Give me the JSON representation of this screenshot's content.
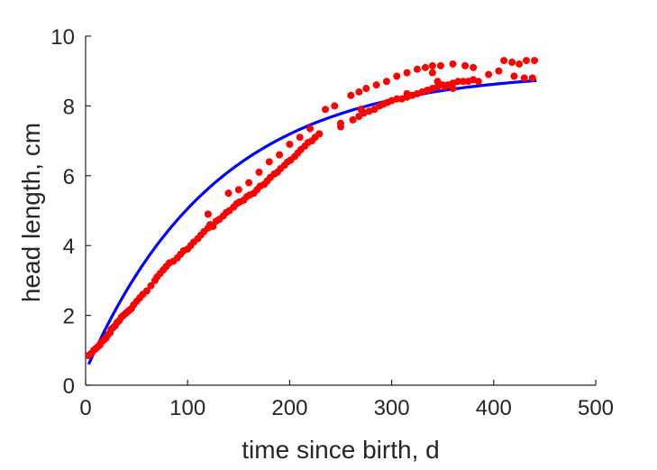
{
  "chart_data": {
    "type": "scatter",
    "xlabel": "time since birth, d",
    "ylabel": "head length, cm",
    "xlim": [
      0,
      500
    ],
    "ylim": [
      0,
      10
    ],
    "xticks": [
      0,
      100,
      200,
      300,
      400,
      500
    ],
    "yticks": [
      0,
      2,
      4,
      6,
      8,
      10
    ],
    "grid": false,
    "series": [
      {
        "kind": "points",
        "color": "#ff0000",
        "points": [
          [
            3,
            0.85
          ],
          [
            5,
            0.9
          ],
          [
            8,
            1.0
          ],
          [
            10,
            1.05
          ],
          [
            12,
            1.1
          ],
          [
            14,
            1.15
          ],
          [
            16,
            1.25
          ],
          [
            18,
            1.3
          ],
          [
            20,
            1.35
          ],
          [
            22,
            1.45
          ],
          [
            24,
            1.5
          ],
          [
            25,
            1.6
          ],
          [
            27,
            1.65
          ],
          [
            29,
            1.7
          ],
          [
            31,
            1.8
          ],
          [
            33,
            1.85
          ],
          [
            35,
            1.95
          ],
          [
            37,
            2.0
          ],
          [
            39,
            2.05
          ],
          [
            41,
            2.1
          ],
          [
            43,
            2.15
          ],
          [
            45,
            2.2
          ],
          [
            47,
            2.3
          ],
          [
            50,
            2.4
          ],
          [
            53,
            2.5
          ],
          [
            56,
            2.6
          ],
          [
            60,
            2.7
          ],
          [
            64,
            2.85
          ],
          [
            68,
            3.0
          ],
          [
            70,
            3.1
          ],
          [
            73,
            3.2
          ],
          [
            76,
            3.3
          ],
          [
            79,
            3.4
          ],
          [
            82,
            3.5
          ],
          [
            86,
            3.55
          ],
          [
            90,
            3.65
          ],
          [
            93,
            3.75
          ],
          [
            96,
            3.85
          ],
          [
            100,
            3.9
          ],
          [
            103,
            4.0
          ],
          [
            106,
            4.1
          ],
          [
            110,
            4.2
          ],
          [
            113,
            4.3
          ],
          [
            116,
            4.4
          ],
          [
            120,
            4.5
          ],
          [
            122,
            4.6
          ],
          [
            125,
            4.55
          ],
          [
            128,
            4.7
          ],
          [
            131,
            4.75
          ],
          [
            135,
            4.85
          ],
          [
            138,
            4.95
          ],
          [
            141,
            5.0
          ],
          [
            145,
            5.1
          ],
          [
            148,
            5.2
          ],
          [
            151,
            5.25
          ],
          [
            155,
            5.3
          ],
          [
            158,
            5.4
          ],
          [
            161,
            5.45
          ],
          [
            165,
            5.5
          ],
          [
            168,
            5.6
          ],
          [
            171,
            5.7
          ],
          [
            175,
            5.75
          ],
          [
            178,
            5.85
          ],
          [
            181,
            5.95
          ],
          [
            185,
            6.05
          ],
          [
            188,
            6.1
          ],
          [
            191,
            6.2
          ],
          [
            195,
            6.3
          ],
          [
            198,
            6.4
          ],
          [
            201,
            6.45
          ],
          [
            205,
            6.55
          ],
          [
            208,
            6.65
          ],
          [
            211,
            6.75
          ],
          [
            215,
            6.85
          ],
          [
            218,
            6.95
          ],
          [
            222,
            7.0
          ],
          [
            225,
            7.1
          ],
          [
            229,
            7.2
          ],
          [
            150,
            5.6
          ],
          [
            160,
            5.8
          ],
          [
            170,
            6.1
          ],
          [
            180,
            6.4
          ],
          [
            190,
            6.6
          ],
          [
            200,
            6.9
          ],
          [
            210,
            7.1
          ],
          [
            220,
            7.35
          ],
          [
            120,
            4.9
          ],
          [
            140,
            5.5
          ],
          [
            235,
            7.9
          ],
          [
            250,
            7.5
          ],
          [
            250,
            7.4
          ],
          [
            262,
            7.6
          ],
          [
            268,
            7.7
          ],
          [
            273,
            7.8
          ],
          [
            278,
            7.85
          ],
          [
            283,
            7.9
          ],
          [
            288,
            8.0
          ],
          [
            292,
            8.05
          ],
          [
            296,
            8.1
          ],
          [
            300,
            8.15
          ],
          [
            305,
            8.2
          ],
          [
            310,
            8.2
          ],
          [
            315,
            8.25
          ],
          [
            320,
            8.3
          ],
          [
            325,
            8.35
          ],
          [
            330,
            8.4
          ],
          [
            335,
            8.45
          ],
          [
            340,
            8.5
          ],
          [
            345,
            8.55
          ],
          [
            350,
            8.6
          ],
          [
            355,
            8.6
          ],
          [
            360,
            8.65
          ],
          [
            365,
            8.7
          ],
          [
            370,
            8.7
          ],
          [
            375,
            8.7
          ],
          [
            380,
            8.75
          ],
          [
            385,
            8.7
          ],
          [
            260,
            8.3
          ],
          [
            268,
            8.4
          ],
          [
            275,
            8.5
          ],
          [
            285,
            8.6
          ],
          [
            295,
            8.7
          ],
          [
            305,
            8.85
          ],
          [
            315,
            8.95
          ],
          [
            325,
            9.05
          ],
          [
            333,
            9.1
          ],
          [
            340,
            9.15
          ],
          [
            348,
            9.15
          ],
          [
            360,
            9.2
          ],
          [
            372,
            9.15
          ],
          [
            380,
            9.1
          ],
          [
            345,
            8.7
          ],
          [
            340,
            8.95
          ],
          [
            360,
            8.5
          ],
          [
            395,
            8.9
          ],
          [
            405,
            9.0
          ],
          [
            410,
            9.3
          ],
          [
            418,
            9.25
          ],
          [
            425,
            9.2
          ],
          [
            432,
            9.3
          ],
          [
            440,
            9.3
          ],
          [
            420,
            8.85
          ],
          [
            430,
            8.8
          ],
          [
            438,
            8.8
          ],
          [
            352,
            8.55
          ],
          [
            315,
            8.35
          ],
          [
            244,
            8.0
          ],
          [
            270,
            7.9
          ]
        ]
      },
      {
        "kind": "line",
        "color": "#0000ff",
        "model": {
          "type": "von-bertalanffy",
          "Linf": 9.0,
          "k": 0.0078,
          "L0": 0.4
        },
        "x_range": [
          3,
          442
        ]
      }
    ]
  }
}
